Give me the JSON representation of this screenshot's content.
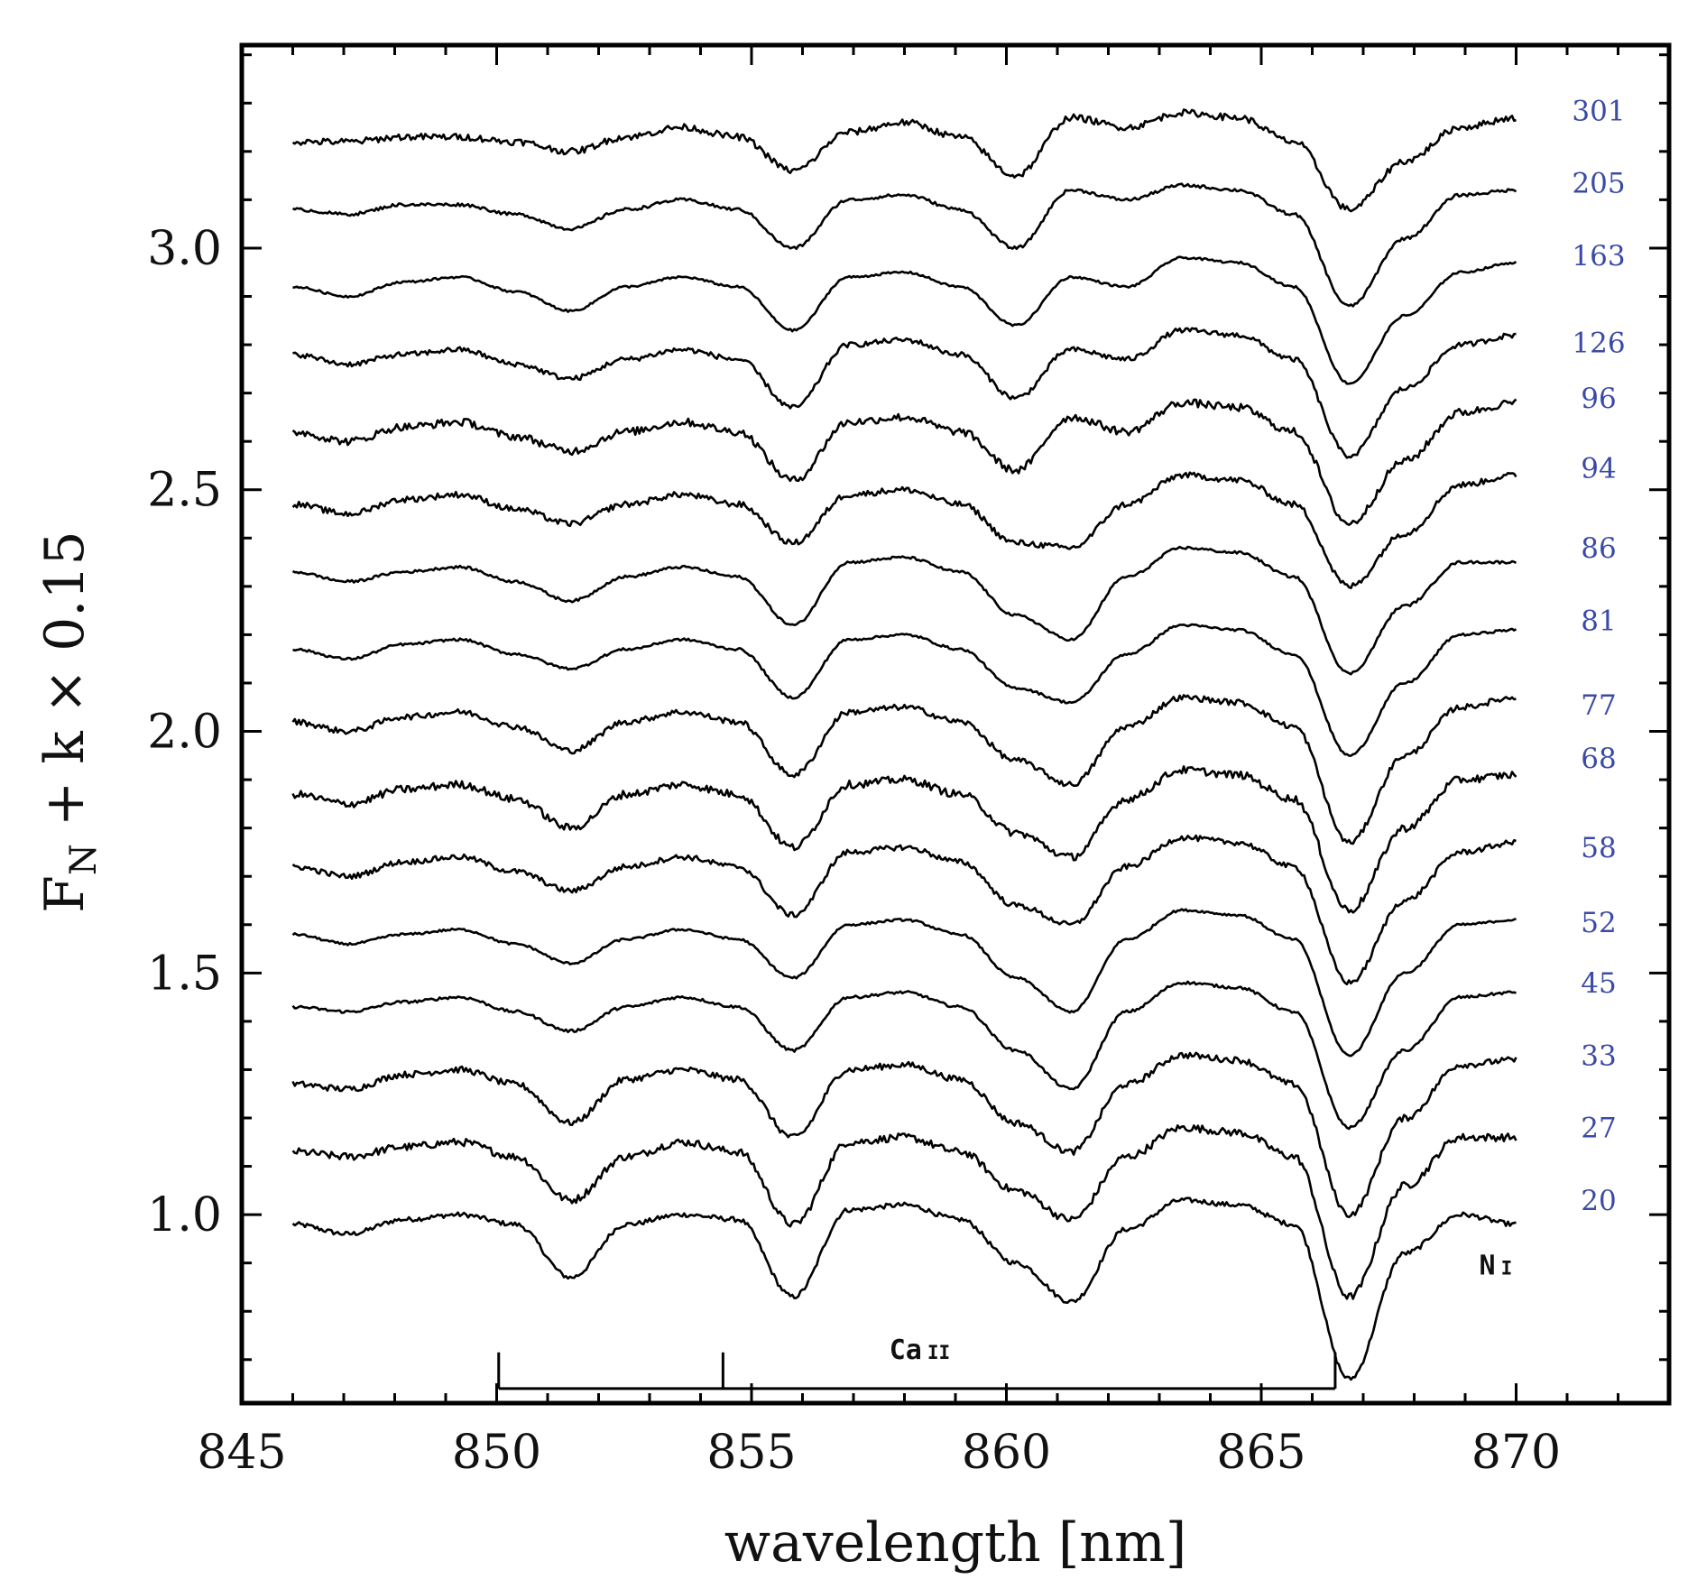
{
  "chart_data": {
    "type": "line",
    "title": "",
    "xlabel": "wavelength [nm]",
    "ylabel": "F_N + k × 0.15",
    "ylabel_parts": {
      "main": "F",
      "sub": "N",
      "rest": " + k × 0.15"
    },
    "xlim": [
      845,
      873
    ],
    "ylim": [
      0.61,
      3.42
    ],
    "xticks": [
      845,
      850,
      855,
      860,
      865,
      870
    ],
    "yticks": [
      1.0,
      1.5,
      2.0,
      2.5,
      3.0
    ],
    "ytick_labels": [
      "1.0",
      "1.5",
      "2.0",
      "2.5",
      "3.0"
    ],
    "x_range": [
      846.0,
      870.0
    ],
    "series_label_color": "#3a4aa6",
    "series": [
      {
        "name": "20",
        "label_y": 1.03,
        "y": [
          0.98,
          0.96,
          0.99,
          1.0,
          0.98,
          0.87,
          0.98,
          1.0,
          0.99,
          0.83,
          1.01,
          1.02,
          0.99,
          0.9,
          0.82,
          0.97,
          1.03,
          1.02,
          0.98,
          0.66,
          0.92,
          1.0,
          0.98
        ]
      },
      {
        "name": "27",
        "label_y": 1.18,
        "y": [
          1.13,
          1.12,
          1.14,
          1.15,
          1.12,
          1.03,
          1.12,
          1.15,
          1.13,
          0.98,
          1.15,
          1.16,
          1.13,
          1.05,
          0.99,
          1.12,
          1.18,
          1.17,
          1.12,
          0.83,
          1.06,
          1.16,
          1.16
        ]
      },
      {
        "name": "33",
        "label_y": 1.33,
        "y": [
          1.27,
          1.26,
          1.29,
          1.3,
          1.27,
          1.19,
          1.28,
          1.3,
          1.28,
          1.16,
          1.3,
          1.31,
          1.28,
          1.19,
          1.13,
          1.27,
          1.33,
          1.32,
          1.27,
          1.0,
          1.2,
          1.31,
          1.32
        ]
      },
      {
        "name": "45",
        "label_y": 1.48,
        "y": [
          1.43,
          1.42,
          1.44,
          1.45,
          1.42,
          1.38,
          1.43,
          1.45,
          1.43,
          1.34,
          1.45,
          1.46,
          1.43,
          1.34,
          1.26,
          1.42,
          1.48,
          1.47,
          1.42,
          1.18,
          1.34,
          1.45,
          1.46
        ]
      },
      {
        "name": "52",
        "label_y": 1.605,
        "y": [
          1.58,
          1.56,
          1.58,
          1.59,
          1.56,
          1.52,
          1.57,
          1.59,
          1.57,
          1.49,
          1.6,
          1.61,
          1.58,
          1.49,
          1.42,
          1.57,
          1.63,
          1.62,
          1.57,
          1.33,
          1.5,
          1.6,
          1.61
        ]
      },
      {
        "name": "58",
        "label_y": 1.76,
        "y": [
          1.72,
          1.7,
          1.73,
          1.74,
          1.71,
          1.67,
          1.72,
          1.74,
          1.72,
          1.62,
          1.75,
          1.76,
          1.73,
          1.64,
          1.6,
          1.72,
          1.78,
          1.77,
          1.72,
          1.48,
          1.65,
          1.75,
          1.77
        ]
      },
      {
        "name": "68",
        "label_y": 1.945,
        "y": [
          1.87,
          1.85,
          1.88,
          1.89,
          1.86,
          1.8,
          1.87,
          1.89,
          1.87,
          1.76,
          1.89,
          1.9,
          1.87,
          1.79,
          1.74,
          1.86,
          1.92,
          1.91,
          1.86,
          1.63,
          1.8,
          1.9,
          1.91
        ]
      },
      {
        "name": "77",
        "label_y": 2.055,
        "y": [
          2.02,
          2.0,
          2.03,
          2.04,
          2.01,
          1.96,
          2.02,
          2.04,
          2.02,
          1.91,
          2.04,
          2.05,
          2.02,
          1.94,
          1.89,
          2.01,
          2.07,
          2.06,
          2.01,
          1.77,
          1.95,
          2.05,
          2.07
        ]
      },
      {
        "name": "81",
        "label_y": 2.23,
        "y": [
          2.17,
          2.15,
          2.18,
          2.19,
          2.16,
          2.13,
          2.17,
          2.19,
          2.17,
          2.07,
          2.19,
          2.2,
          2.17,
          2.09,
          2.06,
          2.16,
          2.22,
          2.21,
          2.16,
          1.95,
          2.1,
          2.2,
          2.21
        ]
      },
      {
        "name": "86",
        "label_y": 2.38,
        "y": [
          2.33,
          2.31,
          2.33,
          2.34,
          2.31,
          2.27,
          2.32,
          2.34,
          2.32,
          2.22,
          2.35,
          2.36,
          2.33,
          2.24,
          2.19,
          2.32,
          2.38,
          2.37,
          2.32,
          2.12,
          2.26,
          2.35,
          2.35
        ]
      },
      {
        "name": "94",
        "label_y": 2.545,
        "y": [
          2.47,
          2.45,
          2.48,
          2.49,
          2.46,
          2.43,
          2.47,
          2.49,
          2.47,
          2.39,
          2.49,
          2.5,
          2.47,
          2.39,
          2.38,
          2.47,
          2.53,
          2.52,
          2.47,
          2.3,
          2.41,
          2.51,
          2.53
        ]
      },
      {
        "name": "96",
        "label_y": 2.69,
        "y": [
          2.62,
          2.6,
          2.63,
          2.64,
          2.61,
          2.58,
          2.62,
          2.64,
          2.62,
          2.52,
          2.64,
          2.65,
          2.62,
          2.54,
          2.65,
          2.62,
          2.68,
          2.67,
          2.62,
          2.43,
          2.56,
          2.66,
          2.68
        ]
      },
      {
        "name": "126",
        "label_y": 2.805,
        "y": [
          2.78,
          2.76,
          2.78,
          2.79,
          2.76,
          2.73,
          2.77,
          2.79,
          2.77,
          2.67,
          2.8,
          2.81,
          2.78,
          2.69,
          2.79,
          2.77,
          2.83,
          2.82,
          2.77,
          2.57,
          2.71,
          2.8,
          2.82
        ]
      },
      {
        "name": "163",
        "label_y": 2.985,
        "y": [
          2.92,
          2.9,
          2.93,
          2.94,
          2.91,
          2.87,
          2.92,
          2.94,
          2.92,
          2.83,
          2.94,
          2.95,
          2.92,
          2.84,
          2.94,
          2.92,
          2.98,
          2.97,
          2.92,
          2.72,
          2.86,
          2.95,
          2.97
        ]
      },
      {
        "name": "205",
        "label_y": 3.135,
        "y": [
          3.08,
          3.07,
          3.09,
          3.09,
          3.07,
          3.04,
          3.08,
          3.1,
          3.08,
          3.0,
          3.1,
          3.11,
          3.08,
          3.0,
          3.12,
          3.1,
          3.13,
          3.12,
          3.07,
          2.88,
          3.02,
          3.11,
          3.12
        ]
      },
      {
        "name": "301",
        "label_y": 3.285,
        "y": [
          3.22,
          3.22,
          3.23,
          3.23,
          3.22,
          3.2,
          3.23,
          3.25,
          3.23,
          3.16,
          3.24,
          3.26,
          3.23,
          3.15,
          3.27,
          3.25,
          3.28,
          3.27,
          3.22,
          3.08,
          3.18,
          3.25,
          3.27
        ]
      }
    ],
    "annotations": [
      {
        "id": "ca-ii",
        "label": "Ca",
        "label_suffix": "II",
        "x": 858.3,
        "y": 0.72,
        "line_positions": [
          850.04,
          854.44,
          866.45
        ],
        "bracket_top": 0.715,
        "bracket_bottom": 0.64
      },
      {
        "id": "n-i",
        "label": "N",
        "label_suffix": "I",
        "x": 869.6,
        "y": 0.895
      }
    ]
  }
}
